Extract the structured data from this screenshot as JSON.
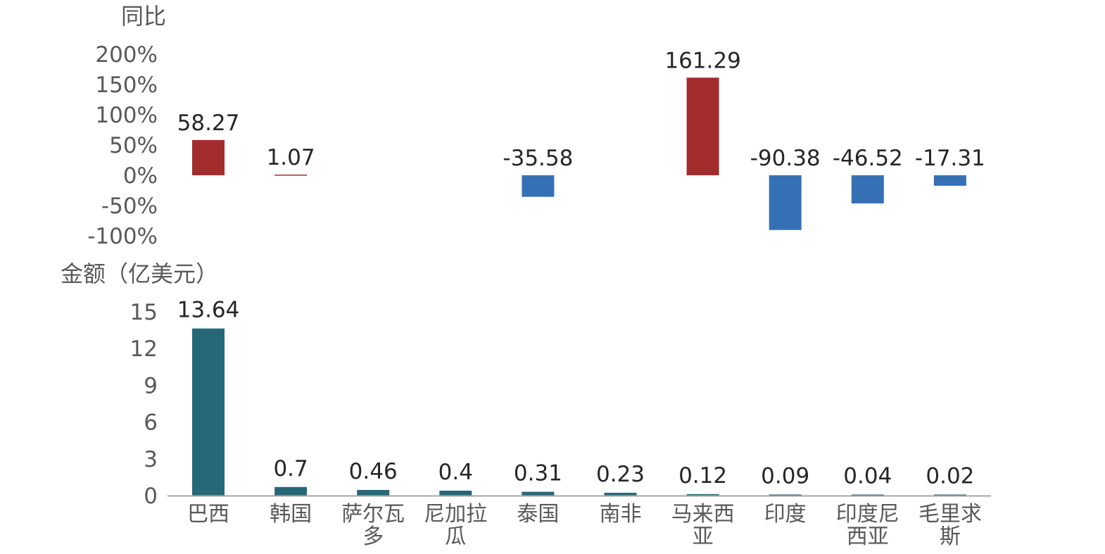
{
  "chart_data": [
    {
      "type": "bar",
      "ylabel": "同比",
      "categories": [
        "巴西",
        "韩国",
        "萨尔瓦多",
        "尼加拉瓜",
        "泰国",
        "南非",
        "马来西亚",
        "印度",
        "印度尼西亚",
        "毛里求斯"
      ],
      "values": [
        58.27,
        1.07,
        null,
        null,
        -35.58,
        null,
        161.29,
        -90.38,
        -46.52,
        -17.31
      ],
      "data_labels": [
        "58.27",
        "1.07",
        "",
        "",
        "-35.58",
        "",
        "161.29",
        "-90.38",
        "-46.52",
        "-17.31"
      ],
      "yticks": [
        -100,
        -50,
        0,
        50,
        100,
        150,
        200
      ],
      "ytick_labels": [
        "-100%",
        "-50%",
        "0%",
        "50%",
        "100%",
        "150%",
        "200%"
      ],
      "ylim": [
        -100,
        200
      ],
      "colors": {
        "positive": "#a32d2d",
        "negative": "#3570b5"
      }
    },
    {
      "type": "bar",
      "ylabel": "金额（亿美元）",
      "categories": [
        "巴西",
        "韩国",
        "萨尔瓦多",
        "尼加拉瓜",
        "泰国",
        "南非",
        "马来西亚",
        "印度",
        "印度尼西亚",
        "毛里求斯"
      ],
      "category_lines": [
        [
          "巴西"
        ],
        [
          "韩国"
        ],
        [
          "萨尔瓦",
          "多"
        ],
        [
          "尼加拉",
          "瓜"
        ],
        [
          "泰国"
        ],
        [
          "南非"
        ],
        [
          "马来西",
          "亚"
        ],
        [
          "印度"
        ],
        [
          "印度尼",
          "西亚"
        ],
        [
          "毛里求",
          "斯"
        ]
      ],
      "values": [
        13.64,
        0.7,
        0.46,
        0.4,
        0.31,
        0.23,
        0.12,
        0.09,
        0.04,
        0.02
      ],
      "data_labels": [
        "13.64",
        "0.7",
        "0.46",
        "0.4",
        "0.31",
        "0.23",
        "0.12",
        "0.09",
        "0.04",
        "0.02"
      ],
      "yticks": [
        0,
        3,
        6,
        9,
        12,
        15
      ],
      "ytick_labels": [
        "0",
        "3",
        "6",
        "9",
        "12",
        "15"
      ],
      "ylim": [
        0,
        15
      ],
      "colors": {
        "bar": "#266878",
        "axis": "#a6a6a6"
      }
    }
  ]
}
